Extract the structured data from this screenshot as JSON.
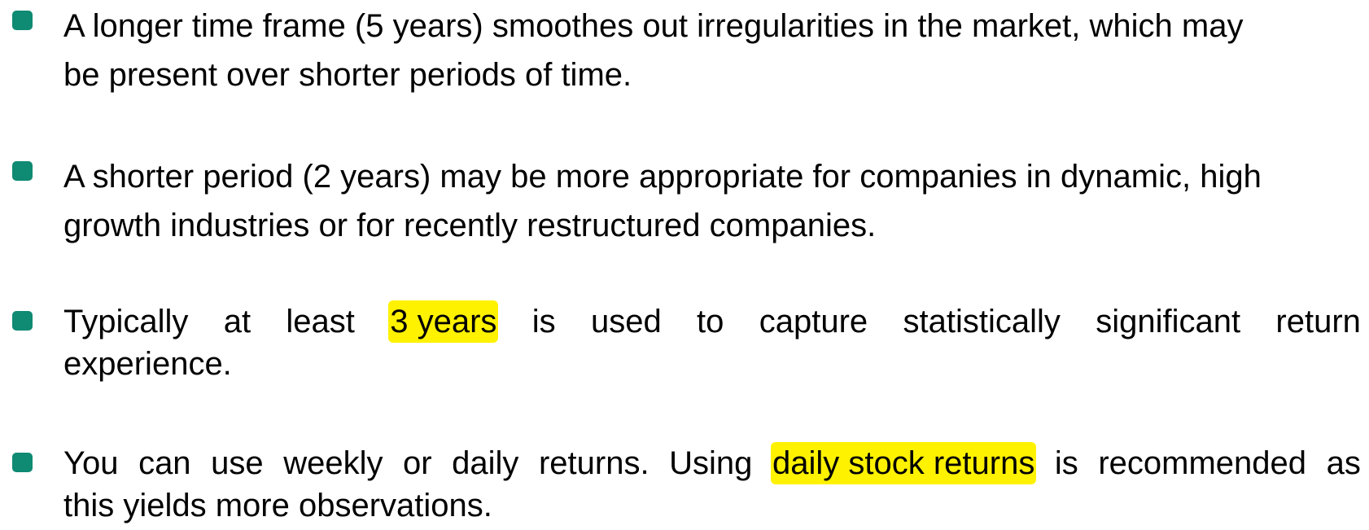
{
  "bullets": [
    {
      "lines": [
        "A longer time frame (5 years) smoothes out irregularities in the market, which may",
        "be present over shorter periods of time."
      ]
    },
    {
      "lines": [
        "A shorter period (2 years) may be more appropriate for companies in dynamic, high",
        "growth industries or for recently restructured companies."
      ]
    },
    {
      "line1_words": [
        "Typically",
        "at",
        "least",
        "3 years",
        "is",
        "used",
        "to",
        "capture",
        "statistically",
        "significant",
        "return"
      ],
      "highlight": "3 years",
      "line2": "experience."
    },
    {
      "line1_words": [
        "You",
        "can",
        "use",
        "weekly",
        "or",
        "daily",
        "returns.",
        "Using",
        "daily stock returns",
        "is",
        "recommended",
        "as"
      ],
      "highlight": "daily stock returns",
      "line2": "this yields more observations."
    }
  ],
  "colors": {
    "bullet_marker": "#0f8a73",
    "highlight": "#fff200"
  }
}
